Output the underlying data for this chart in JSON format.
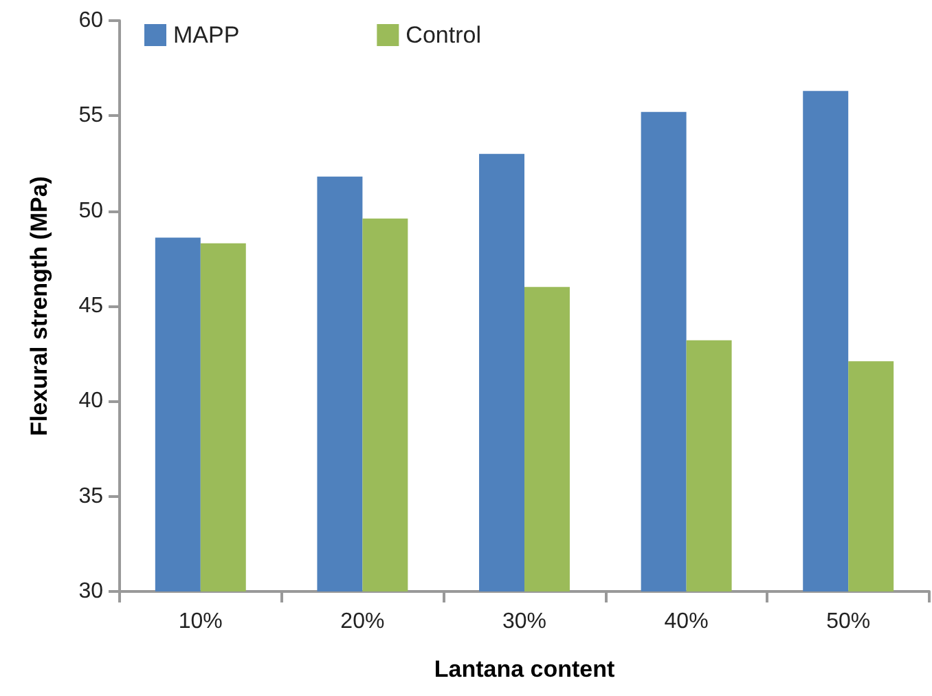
{
  "chart_data": {
    "type": "bar",
    "xlabel": "Lantana content",
    "ylabel": "Flexural strength (MPa)",
    "categories": [
      "10%",
      "20%",
      "30%",
      "40%",
      "50%"
    ],
    "series": [
      {
        "name": "MAPP",
        "color": "#4f81bd",
        "values": [
          48.6,
          51.8,
          53.0,
          55.2,
          56.3
        ]
      },
      {
        "name": "Control",
        "color": "#9bbb59",
        "values": [
          48.3,
          49.6,
          46.0,
          43.2,
          42.1
        ]
      }
    ],
    "ylim": [
      30,
      60
    ],
    "yticks": [
      30,
      35,
      40,
      45,
      50,
      55,
      60
    ],
    "grid": false,
    "legend": "top left"
  }
}
